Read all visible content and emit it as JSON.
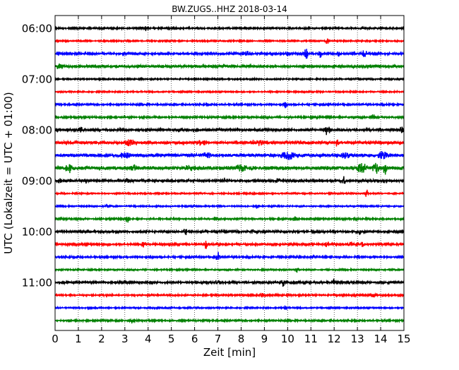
{
  "chart_data": {
    "type": "line",
    "title": "BW.ZUGS..HHZ 2018-03-14",
    "xlabel": "Zeit  [min]",
    "ylabel": "UTC (Lokalzeit = UTC + 01:00)",
    "xlim": [
      0,
      15
    ],
    "x_ticks": [
      0,
      1,
      2,
      3,
      4,
      5,
      6,
      7,
      8,
      9,
      10,
      11,
      12,
      13,
      14,
      15
    ],
    "x_tick_labels": [
      "0",
      "1",
      "2",
      "3",
      "4",
      "5",
      "6",
      "7",
      "8",
      "9",
      "10",
      "11",
      "12",
      "13",
      "14",
      "15"
    ],
    "y_tick_labels": [
      "06:00",
      "07:00",
      "08:00",
      "09:00",
      "10:00",
      "11:00"
    ],
    "grid": "vertical dotted lines at each minute",
    "trace_colors": [
      "#000000",
      "#ff0000",
      "#0000ff",
      "#008000"
    ],
    "traces": [
      {
        "start": "06:00",
        "color": "#000000",
        "noise": 1.2,
        "spikes": [
          [
            3.9,
            3,
            0.15
          ]
        ]
      },
      {
        "start": "06:15",
        "color": "#ff0000",
        "noise": 1.0,
        "spikes": [
          [
            11.7,
            4,
            0.05
          ]
        ]
      },
      {
        "start": "06:30",
        "color": "#0000ff",
        "noise": 1.5,
        "spikes": [
          [
            8.2,
            4,
            0.1
          ],
          [
            10.0,
            5,
            0.05
          ],
          [
            10.8,
            8,
            0.05
          ],
          [
            11.4,
            7,
            0.05
          ],
          [
            12.2,
            3,
            0.1
          ],
          [
            13.3,
            4,
            0.1
          ]
        ]
      },
      {
        "start": "06:45",
        "color": "#008000",
        "noise": 2.0,
        "spikes": [
          [
            0.2,
            4,
            0.1
          ],
          [
            7.3,
            5,
            0.05
          ]
        ]
      },
      {
        "start": "07:00",
        "color": "#000000",
        "noise": 1.0,
        "spikes": []
      },
      {
        "start": "07:15",
        "color": "#ff0000",
        "noise": 1.0,
        "spikes": []
      },
      {
        "start": "07:30",
        "color": "#0000ff",
        "noise": 1.2,
        "spikes": [
          [
            9.9,
            4,
            0.05
          ]
        ]
      },
      {
        "start": "07:45",
        "color": "#008000",
        "noise": 1.3,
        "spikes": [
          [
            13.7,
            5,
            0.05
          ]
        ]
      },
      {
        "start": "08:00",
        "color": "#000000",
        "noise": 1.8,
        "spikes": [
          [
            1.1,
            6,
            0.05
          ],
          [
            11.7,
            6,
            0.1
          ],
          [
            14.9,
            4,
            0.1
          ]
        ]
      },
      {
        "start": "08:15",
        "color": "#ff0000",
        "noise": 2.0,
        "spikes": [
          [
            3.2,
            3,
            0.2
          ],
          [
            6.3,
            3,
            0.2
          ],
          [
            8.7,
            3,
            0.3
          ],
          [
            12.1,
            4,
            0.05
          ]
        ]
      },
      {
        "start": "08:30",
        "color": "#0000ff",
        "noise": 2.2,
        "spikes": [
          [
            3.0,
            3,
            0.2
          ],
          [
            6.5,
            3,
            0.2
          ],
          [
            10.0,
            4,
            0.3
          ],
          [
            12.5,
            3,
            0.2
          ],
          [
            14.1,
            4,
            0.2
          ]
        ]
      },
      {
        "start": "08:45",
        "color": "#008000",
        "noise": 2.6,
        "spikes": [
          [
            0.6,
            6,
            0.1
          ],
          [
            3.4,
            3,
            0.1
          ],
          [
            5.8,
            3,
            0.2
          ],
          [
            8.0,
            3,
            0.2
          ],
          [
            13.2,
            5,
            0.2
          ],
          [
            13.8,
            6,
            0.1
          ],
          [
            14.2,
            7,
            0.1
          ]
        ]
      },
      {
        "start": "09:00",
        "color": "#000000",
        "noise": 1.8,
        "spikes": [
          [
            0.2,
            4,
            0.05
          ],
          [
            1.3,
            3,
            0.05
          ],
          [
            3.1,
            3,
            0.05
          ],
          [
            7.3,
            3,
            0.05
          ],
          [
            9.6,
            3,
            0.05
          ],
          [
            12.4,
            6,
            0.05
          ]
        ]
      },
      {
        "start": "09:15",
        "color": "#ff0000",
        "noise": 1.0,
        "spikes": [
          [
            13.4,
            6,
            0.05
          ]
        ]
      },
      {
        "start": "09:30",
        "color": "#0000ff",
        "noise": 1.0,
        "spikes": [
          [
            2.2,
            3,
            0.05
          ],
          [
            8.7,
            4,
            0.05
          ]
        ]
      },
      {
        "start": "09:45",
        "color": "#008000",
        "noise": 1.2,
        "spikes": [
          [
            3.1,
            6,
            0.05
          ],
          [
            6.9,
            3,
            0.05
          ],
          [
            10.3,
            3,
            0.05
          ]
        ]
      },
      {
        "start": "10:00",
        "color": "#000000",
        "noise": 1.4,
        "spikes": [
          [
            5.6,
            5,
            0.05
          ],
          [
            8.5,
            3,
            0.05
          ],
          [
            13.1,
            4,
            0.05
          ]
        ]
      },
      {
        "start": "10:15",
        "color": "#ff0000",
        "noise": 1.5,
        "spikes": [
          [
            3.8,
            3,
            0.1
          ],
          [
            6.5,
            6,
            0.05
          ],
          [
            11.7,
            5,
            0.05
          ],
          [
            12.7,
            4,
            0.05
          ],
          [
            13.2,
            3,
            0.05
          ]
        ]
      },
      {
        "start": "10:30",
        "color": "#0000ff",
        "noise": 1.3,
        "spikes": [
          [
            7.0,
            7,
            0.05
          ],
          [
            11.1,
            3,
            0.05
          ]
        ]
      },
      {
        "start": "10:45",
        "color": "#008000",
        "noise": 1.0,
        "spikes": [
          [
            10.4,
            5,
            0.05
          ]
        ]
      },
      {
        "start": "11:00",
        "color": "#000000",
        "noise": 1.5,
        "spikes": [
          [
            7.0,
            3,
            0.1
          ],
          [
            9.8,
            5,
            0.05
          ],
          [
            12.0,
            5,
            0.05
          ]
        ]
      },
      {
        "start": "11:15",
        "color": "#ff0000",
        "noise": 1.2,
        "spikes": [
          [
            8.9,
            3,
            0.1
          ],
          [
            13.7,
            5,
            0.05
          ]
        ]
      },
      {
        "start": "11:30",
        "color": "#0000ff",
        "noise": 1.0,
        "spikes": [
          [
            1.5,
            3,
            0.05
          ],
          [
            9.9,
            3,
            0.05
          ]
        ]
      },
      {
        "start": "11:45",
        "color": "#008000",
        "noise": 1.2,
        "spikes": [
          [
            3.3,
            4,
            0.05
          ]
        ]
      }
    ]
  }
}
